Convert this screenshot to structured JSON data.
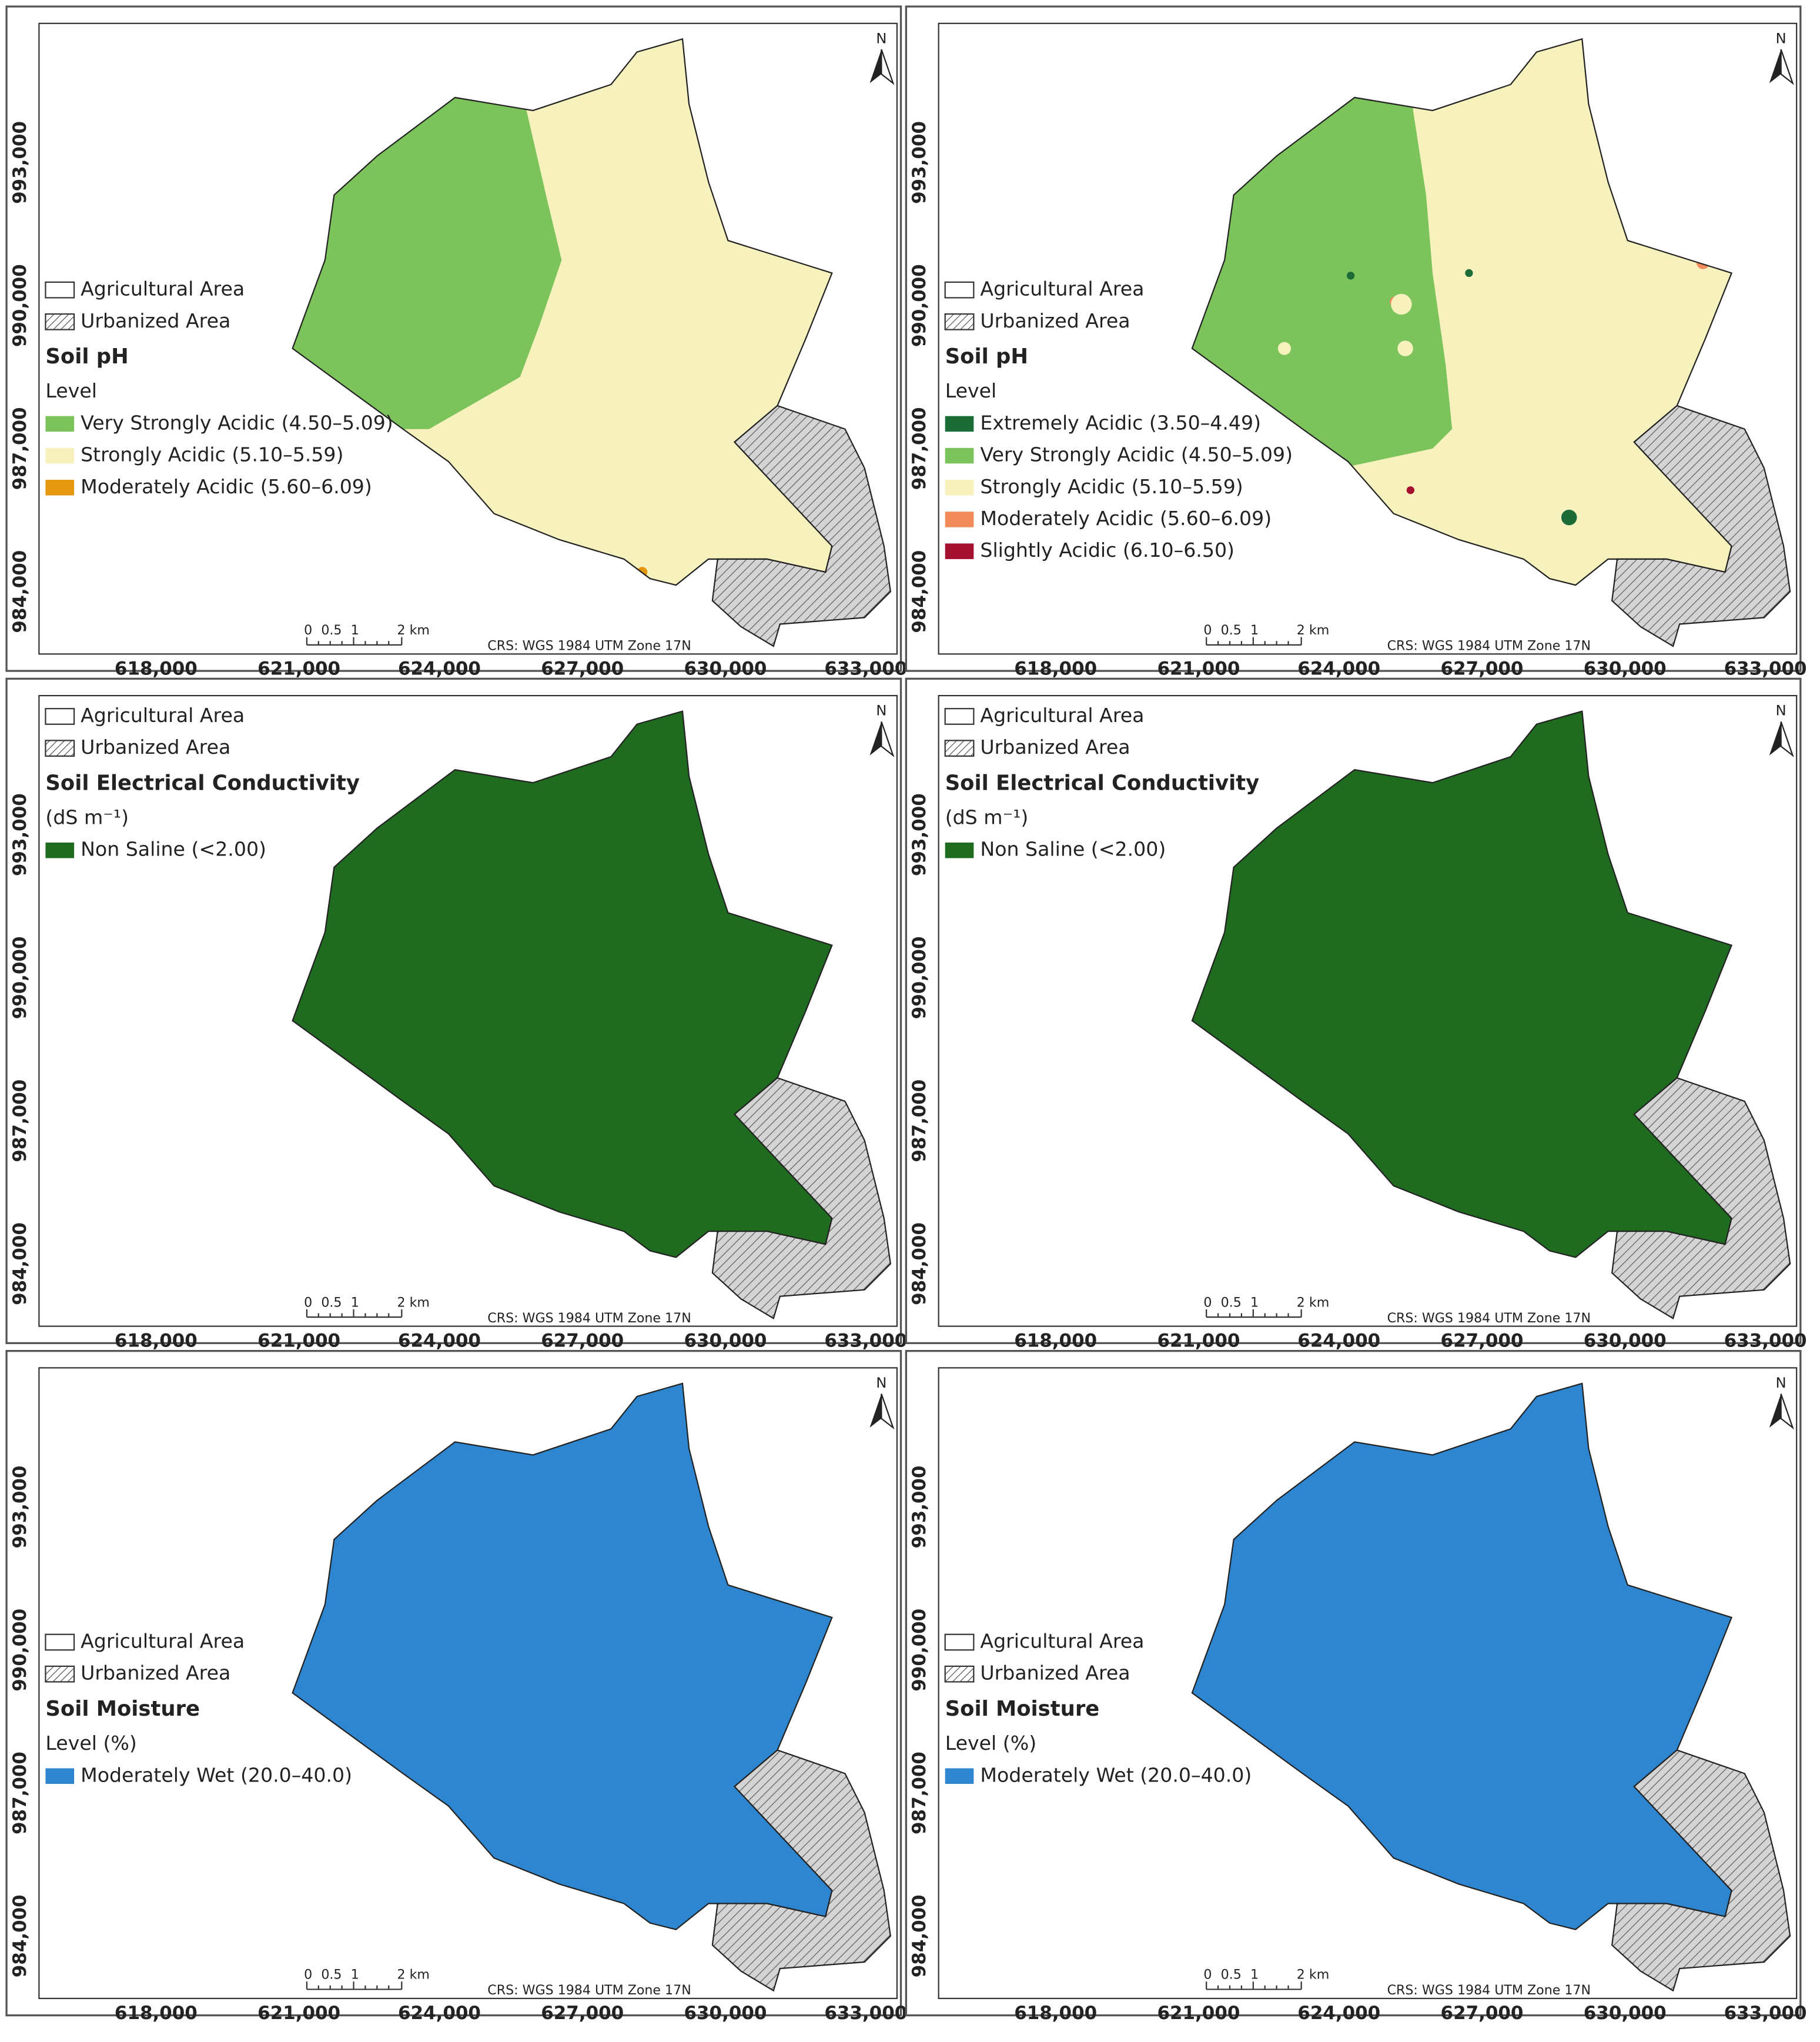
{
  "legend_common": {
    "agricultural_area": "Agricultural Area",
    "urbanized_area": "Urbanized Area"
  },
  "axes": {
    "x_labels": [
      "618,000",
      "621,000",
      "624,000",
      "627,000",
      "630,000",
      "633,000"
    ],
    "y_labels": [
      "993,000",
      "990,000",
      "987,000",
      "984,000"
    ]
  },
  "scale_bar": {
    "labels": [
      "0",
      "0.5",
      "1",
      "2 km"
    ]
  },
  "crs": "CRS: WGS 1984 UTM Zone 17N",
  "north": "N",
  "panels": [
    {
      "title": "Soil pH",
      "subtitle": "Level",
      "items": [
        {
          "label": "Very Strongly Acidic (4.50–5.09)",
          "color": "#7cc35c"
        },
        {
          "label": "Strongly Acidic (5.10–5.59)",
          "color": "#f6f1bd"
        },
        {
          "label": "Moderately Acidic (5.60–6.09)",
          "color": "#e3980f"
        }
      ]
    },
    {
      "title": "Soil pH",
      "subtitle": "Level",
      "items": [
        {
          "label": "Extremely Acidic (3.50–4.49)",
          "color": "#1d6b36"
        },
        {
          "label": "Very Strongly Acidic (4.50–5.09)",
          "color": "#7cc35c"
        },
        {
          "label": "Strongly Acidic (5.10–5.59)",
          "color": "#f6f1bd"
        },
        {
          "label": "Moderately Acidic (5.60–6.09)",
          "color": "#f28b5b"
        },
        {
          "label": "Slightly Acidic (6.10–6.50)",
          "color": "#a3112e"
        }
      ]
    },
    {
      "title": "Soil Electrical Conductivity",
      "subtitle": "(dS m⁻¹)",
      "items": [
        {
          "label": "Non Saline (<2.00)",
          "color": "#1f6b1f"
        }
      ]
    },
    {
      "title": "Soil Electrical Conductivity",
      "subtitle": "(dS m⁻¹)",
      "items": [
        {
          "label": "Non Saline (<2.00)",
          "color": "#1f6b1f"
        }
      ]
    },
    {
      "title": "Soil Moisture",
      "subtitle": "Level (%)",
      "items": [
        {
          "label": "Moderately Wet (20.0–40.0)",
          "color": "#2f86d0"
        }
      ]
    },
    {
      "title": "Soil Moisture",
      "subtitle": "Level (%)",
      "items": [
        {
          "label": "Moderately Wet (20.0–40.0)",
          "color": "#2f86d0"
        }
      ]
    }
  ]
}
